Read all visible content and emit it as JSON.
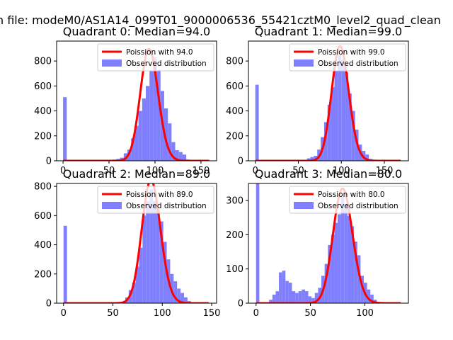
{
  "suptitle": "n file: modeM0/AS1A14_099T01_9000006536_55421cztM0_level2_quad_clean",
  "colors": {
    "poisson": "#ff0000",
    "observed": "#8080ff"
  },
  "chart_data": [
    {
      "type": "bar",
      "title": "Quadrant 0: Median=94.0",
      "legend": [
        "Poission with 94.0",
        "Observed distribution"
      ],
      "legend_position": "top-right",
      "median": 94.0,
      "xlim": [
        -7,
        167
      ],
      "ylim": [
        0,
        960
      ],
      "xticks": [
        0,
        50,
        100,
        150
      ],
      "yticks": [
        0,
        200,
        400,
        600,
        800
      ],
      "bin_width": 4,
      "bins_x": [
        0,
        50,
        54,
        58,
        62,
        66,
        70,
        74,
        78,
        82,
        86,
        90,
        94,
        98,
        102,
        106,
        110,
        114,
        118,
        122,
        126,
        130,
        134,
        138
      ],
      "bins_y": [
        510,
        5,
        10,
        15,
        25,
        60,
        90,
        180,
        280,
        400,
        500,
        600,
        720,
        830,
        730,
        560,
        420,
        300,
        150,
        85,
        70,
        50,
        10,
        0
      ]
    },
    {
      "type": "bar",
      "title": "Quadrant 1: Median=99.0",
      "legend": [
        "Poission with 99.0",
        "Observed distribution"
      ],
      "legend_position": "top-right",
      "median": 99.0,
      "xlim": [
        -8,
        178
      ],
      "ylim": [
        0,
        960
      ],
      "xticks": [
        0,
        50,
        100,
        150
      ],
      "yticks": [
        0,
        200,
        400,
        600,
        800
      ],
      "bin_width": 4,
      "bins_x": [
        0,
        60,
        64,
        68,
        72,
        76,
        80,
        84,
        88,
        92,
        96,
        100,
        104,
        108,
        112,
        116,
        120,
        124,
        128,
        132,
        136
      ],
      "bins_y": [
        610,
        20,
        30,
        40,
        90,
        190,
        310,
        450,
        590,
        720,
        850,
        810,
        710,
        540,
        400,
        250,
        130,
        80,
        50,
        15,
        0
      ]
    },
    {
      "type": "bar",
      "title": "Quadrant 2: Median=89.0",
      "legend": [
        "Poission with 89.0",
        "Observed distribution"
      ],
      "legend_position": "top-right",
      "median": 89.0,
      "xlim": [
        -7,
        155
      ],
      "ylim": [
        0,
        820
      ],
      "xticks": [
        0,
        50,
        100,
        150
      ],
      "yticks": [
        0,
        200,
        400,
        600,
        800
      ],
      "bin_width": 3.5,
      "bins_x": [
        0,
        59,
        62.5,
        66,
        69.5,
        73,
        76.5,
        80,
        83.5,
        87,
        90.5,
        94,
        97.5,
        101,
        104.5,
        108,
        111.5,
        115,
        118.5,
        122,
        125.5,
        129
      ],
      "bins_y": [
        530,
        10,
        40,
        90,
        140,
        250,
        380,
        600,
        700,
        780,
        700,
        640,
        560,
        420,
        300,
        200,
        150,
        100,
        70,
        40,
        15,
        0
      ]
    },
    {
      "type": "bar",
      "title": "Quadrant 3: Median=80.0",
      "legend": [
        "Poission with 80.0",
        "Observed distribution"
      ],
      "legend_position": "top-right",
      "median": 80.0,
      "xlim": [
        -7,
        140
      ],
      "ylim": [
        0,
        350
      ],
      "xticks": [
        0,
        50,
        100
      ],
      "yticks": [
        0,
        100,
        200,
        300
      ],
      "bin_width": 3,
      "bins_x": [
        0,
        12,
        15,
        18,
        21,
        24,
        27,
        30,
        33,
        36,
        39,
        42,
        45,
        48,
        51,
        54,
        57,
        60,
        63,
        66,
        69,
        72,
        75,
        78,
        81,
        84,
        87,
        90,
        93,
        96,
        99,
        102,
        105,
        108,
        111
      ],
      "bins_y": [
        350,
        10,
        25,
        35,
        90,
        95,
        65,
        60,
        35,
        30,
        35,
        40,
        35,
        20,
        15,
        30,
        45,
        80,
        115,
        170,
        200,
        235,
        260,
        310,
        290,
        255,
        225,
        180,
        140,
        80,
        60,
        40,
        25,
        10,
        0
      ]
    }
  ]
}
